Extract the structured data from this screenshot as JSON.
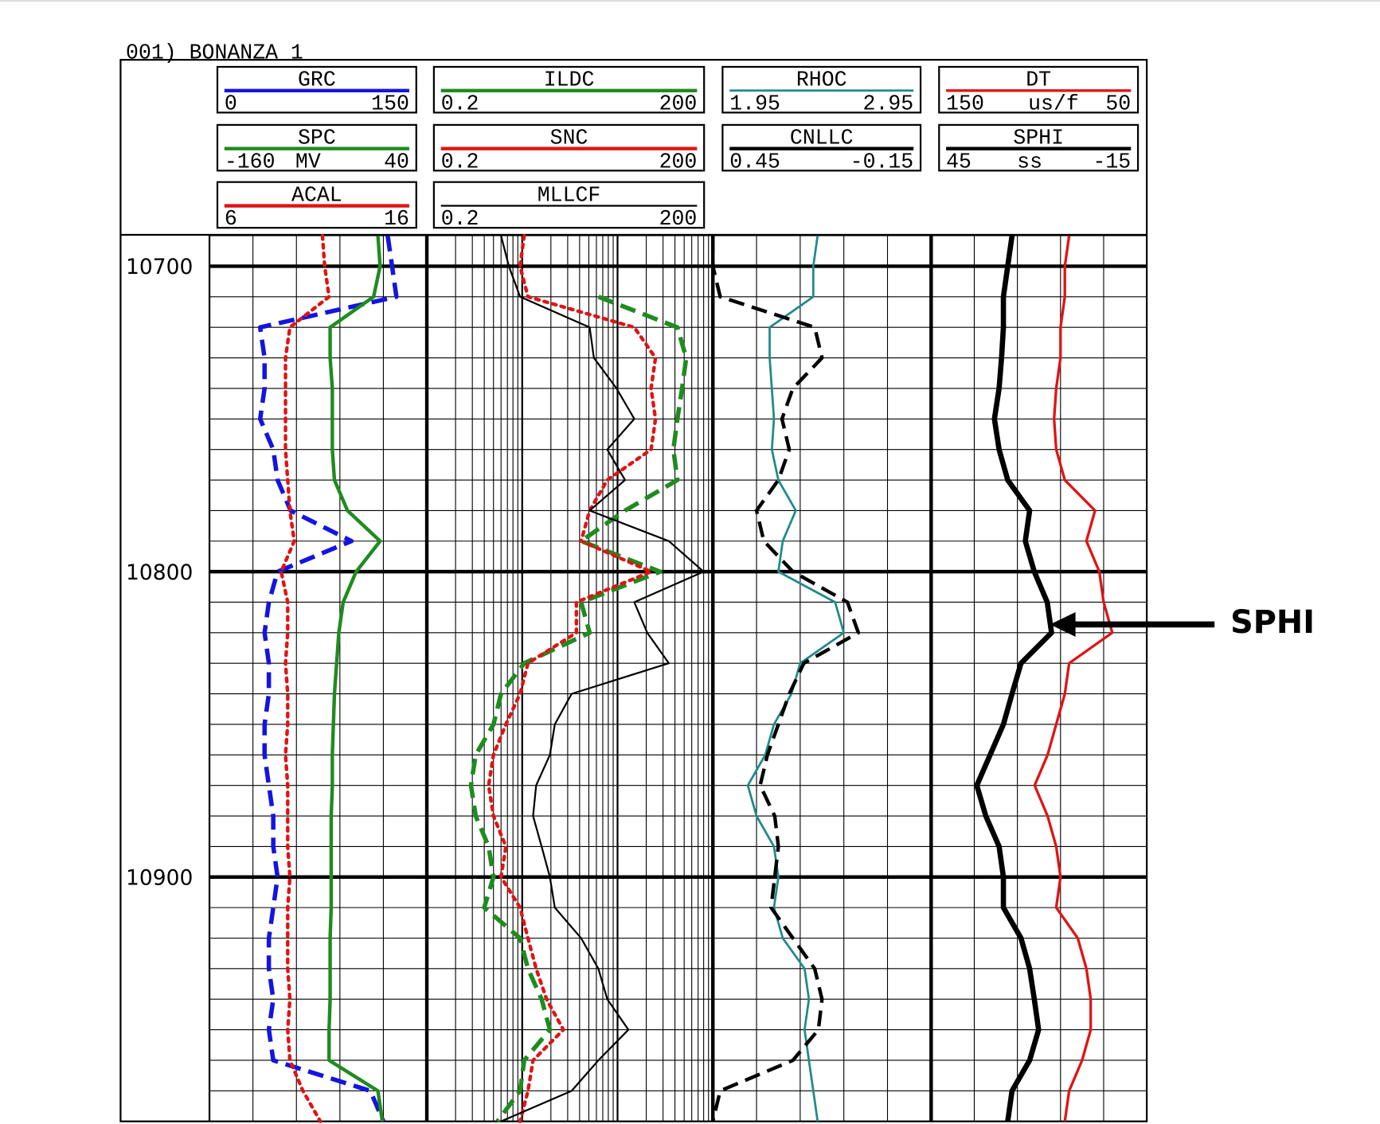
{
  "chart_data": {
    "type": "well-log",
    "title": "001) BONANZA 1",
    "annotation": "SPHI",
    "ylim": [
      10690,
      10980
    ],
    "yticks": [
      10700,
      10800,
      10900
    ],
    "depths": [
      10690,
      10700,
      10710,
      10720,
      10730,
      10740,
      10750,
      10760,
      10770,
      10780,
      10790,
      10800,
      10810,
      10820,
      10830,
      10840,
      10850,
      10860,
      10870,
      10880,
      10890,
      10900,
      10910,
      10920,
      10930,
      10940,
      10950,
      10960,
      10970,
      10980
    ],
    "tracks": [
      {
        "scale": "linear"
      },
      {
        "scale": "log"
      },
      {
        "scale": "linear"
      },
      {
        "scale": "linear"
      }
    ],
    "series": [
      {
        "name": "GRC",
        "color": "#1414e0",
        "style": "dashed",
        "line_width": 5,
        "track": 0,
        "xlim": [
          0,
          150
        ],
        "values": [
          123,
          126,
          129,
          35,
          38,
          38,
          35,
          44,
          47,
          56,
          98,
          47,
          41,
          38,
          41,
          41,
          38,
          38,
          41,
          44,
          44,
          47,
          44,
          41,
          41,
          44,
          41,
          44,
          111,
          120
        ]
      },
      {
        "name": "SPC",
        "color": "#1e8c1e",
        "style": "solid",
        "line_width": 4,
        "track": 0,
        "xlim": [
          -160,
          40
        ],
        "unit": "MV",
        "values": [
          -5,
          -3,
          -9,
          -49,
          -49,
          -47,
          -47,
          -47,
          -45,
          -33,
          -3,
          -25,
          -37,
          -41,
          -43,
          -45,
          -46,
          -47,
          -47,
          -48,
          -48,
          -48,
          -48,
          -49,
          -49,
          -49,
          -50,
          -50,
          -5,
          -1
        ]
      },
      {
        "name": "ACAL",
        "color": "#e01414",
        "style": "dotted",
        "line_width": 4,
        "track": 0,
        "xlim": [
          6,
          16
        ],
        "values": [
          11.2,
          11.3,
          11.5,
          9.7,
          9.5,
          9.5,
          9.5,
          9.5,
          9.6,
          9.7,
          9.9,
          9.3,
          9.6,
          9.6,
          9.5,
          9.6,
          9.6,
          9.5,
          9.6,
          9.6,
          9.6,
          9.7,
          9.6,
          9.6,
          9.6,
          9.7,
          9.6,
          9.7,
          10.3,
          11.1
        ]
      },
      {
        "name": "ILDC",
        "color": "#1e8c1e",
        "style": "dashed",
        "line_width": 5,
        "track": 1,
        "xlim": [
          0.2,
          200
        ],
        "values": [
          null,
          null,
          12.6,
          85,
          105,
          95,
          85,
          77,
          85,
          24,
          8.3,
          56,
          8.3,
          10.2,
          2.1,
          1.2,
          1.0,
          0.65,
          0.58,
          0.65,
          0.89,
          1.0,
          0.8,
          1.9,
          2.3,
          3.2,
          3.9,
          2.1,
          1.9,
          1.1
        ]
      },
      {
        "name": "SNC",
        "color": "#e01414",
        "style": "dotted",
        "line_width": 4,
        "track": 1,
        "xlim": [
          0.2,
          200
        ],
        "values": [
          2.1,
          1.9,
          2.3,
          30,
          50,
          45,
          50,
          45,
          15.6,
          10.2,
          8.3,
          45,
          7.4,
          7.4,
          2.3,
          1.9,
          1.35,
          1.0,
          0.89,
          1.0,
          1.35,
          1.2,
          1.9,
          2.3,
          2.8,
          3.6,
          5.4,
          2.6,
          2.3,
          1.9
        ]
      },
      {
        "name": "MLLCF",
        "color": "#000000",
        "style": "solid",
        "line_width": 2,
        "track": 1,
        "xlim": [
          0.2,
          200
        ],
        "values": [
          1.2,
          1.45,
          1.9,
          10.2,
          11.3,
          19.5,
          30,
          15.6,
          24,
          10.2,
          69,
          160,
          30,
          41,
          69,
          6.6,
          4.4,
          3.9,
          2.8,
          2.6,
          3.2,
          3.9,
          4.4,
          8.3,
          12.6,
          15.6,
          26,
          12.6,
          6.6,
          1.2
        ]
      },
      {
        "name": "RHOC",
        "color": "#208a8a",
        "style": "solid",
        "line_width": 2.5,
        "track": 2,
        "xlim": [
          1.95,
          2.95
        ],
        "values": [
          2.43,
          2.41,
          2.41,
          2.21,
          2.21,
          2.22,
          2.23,
          2.22,
          2.25,
          2.33,
          2.27,
          2.25,
          2.51,
          2.55,
          2.35,
          2.31,
          2.23,
          2.19,
          2.11,
          2.15,
          2.23,
          2.25,
          2.23,
          2.27,
          2.37,
          2.39,
          2.37,
          2.39,
          2.41,
          2.43
        ]
      },
      {
        "name": "CNLLC",
        "color": "#000000",
        "style": "dashed",
        "line_width": 4,
        "track": 2,
        "xlim": [
          0.45,
          -0.15
        ],
        "values": [
          0.45,
          0.45,
          0.43,
          0.17,
          0.15,
          0.23,
          0.26,
          0.24,
          0.27,
          0.33,
          0.31,
          0.23,
          0.08,
          0.05,
          0.2,
          0.24,
          0.27,
          0.3,
          0.32,
          0.28,
          0.27,
          0.28,
          0.29,
          0.23,
          0.17,
          0.15,
          0.16,
          0.23,
          0.43,
          0.45
        ]
      },
      {
        "name": "DT",
        "color": "#e01414",
        "style": "solid",
        "line_width": 3,
        "track": 3,
        "xlim": [
          150,
          50
        ],
        "unit": "us/f",
        "values": [
          86,
          88,
          88,
          90,
          90,
          92,
          93,
          92,
          88,
          74,
          78,
          72,
          70,
          66,
          86,
          88,
          92,
          96,
          102,
          96,
          92,
          90,
          92,
          82,
          78,
          76,
          76,
          80,
          86,
          88
        ]
      },
      {
        "name": "SPHI",
        "color": "#000000",
        "style": "solid",
        "line_width": 6,
        "track": 3,
        "xlim": [
          45,
          -15
        ],
        "unit": "ss",
        "values": [
          22.5,
          23.7,
          24.9,
          24.9,
          25.4,
          26.1,
          27.4,
          26.1,
          23.7,
          17.6,
          18.8,
          16.3,
          12.7,
          11.5,
          20.0,
          22.5,
          24.9,
          28.6,
          32.3,
          29.8,
          26.1,
          24.9,
          24.9,
          20.0,
          17.6,
          16.3,
          15.1,
          17.6,
          22.5,
          23.7
        ]
      }
    ]
  }
}
